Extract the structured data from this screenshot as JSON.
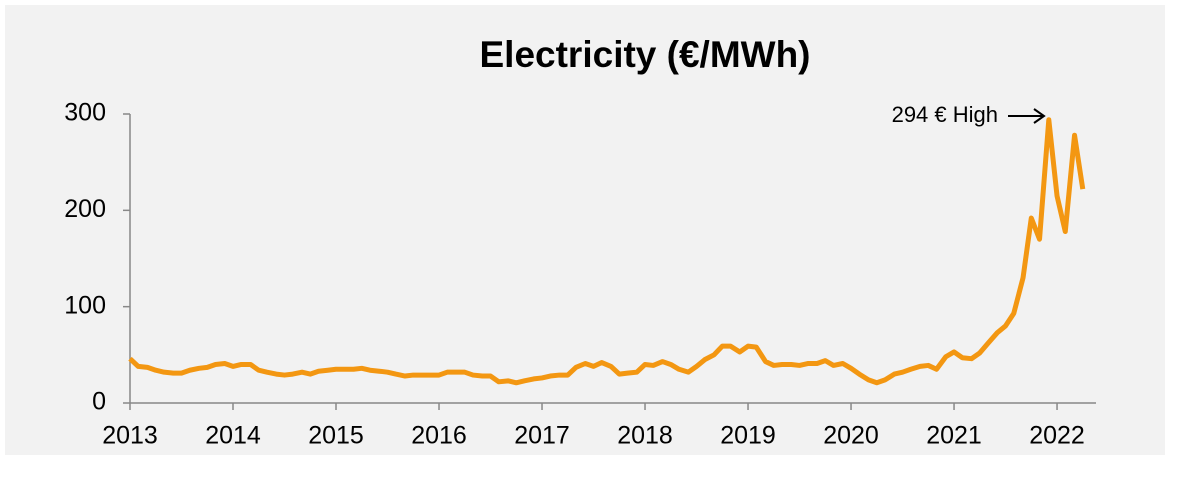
{
  "chart_data": {
    "type": "line",
    "title": "Electricity (€/MWh)",
    "annotation": "294 € High",
    "x": [
      2013,
      2013.08,
      2013.17,
      2013.25,
      2013.33,
      2013.42,
      2013.5,
      2013.58,
      2013.67,
      2013.75,
      2013.83,
      2013.92,
      2014,
      2014.08,
      2014.17,
      2014.25,
      2014.33,
      2014.42,
      2014.5,
      2014.58,
      2014.67,
      2014.75,
      2014.83,
      2014.92,
      2015,
      2015.08,
      2015.17,
      2015.25,
      2015.33,
      2015.42,
      2015.5,
      2015.58,
      2015.67,
      2015.75,
      2015.83,
      2015.92,
      2016,
      2016.08,
      2016.17,
      2016.25,
      2016.33,
      2016.42,
      2016.5,
      2016.58,
      2016.67,
      2016.75,
      2016.83,
      2016.92,
      2017,
      2017.08,
      2017.17,
      2017.25,
      2017.33,
      2017.42,
      2017.5,
      2017.58,
      2017.67,
      2017.75,
      2017.83,
      2017.92,
      2018,
      2018.08,
      2018.17,
      2018.25,
      2018.33,
      2018.42,
      2018.5,
      2018.58,
      2018.67,
      2018.75,
      2018.83,
      2018.92,
      2019,
      2019.08,
      2019.17,
      2019.25,
      2019.33,
      2019.42,
      2019.5,
      2019.58,
      2019.67,
      2019.75,
      2019.83,
      2019.92,
      2020,
      2020.08,
      2020.17,
      2020.25,
      2020.33,
      2020.42,
      2020.5,
      2020.58,
      2020.67,
      2020.75,
      2020.83,
      2020.92,
      2021,
      2021.08,
      2021.17,
      2021.25,
      2021.33,
      2021.42,
      2021.5,
      2021.58,
      2021.67,
      2021.75,
      2021.83,
      2021.92,
      2022,
      2022.08,
      2022.17,
      2022.25
    ],
    "series": [
      {
        "name": "Electricity",
        "color": "#f39712",
        "values": [
          46,
          38,
          37,
          34,
          32,
          31,
          31,
          34,
          36,
          37,
          40,
          41,
          38,
          40,
          40,
          34,
          32,
          30,
          29,
          30,
          32,
          30,
          33,
          34,
          35,
          35,
          35,
          36,
          34,
          33,
          32,
          30,
          28,
          29,
          29,
          29,
          29,
          32,
          32,
          32,
          29,
          28,
          28,
          22,
          23,
          21,
          23,
          25,
          26,
          28,
          29,
          29,
          37,
          41,
          38,
          42,
          38,
          30,
          31,
          32,
          40,
          39,
          43,
          40,
          35,
          32,
          38,
          45,
          50,
          59,
          59,
          53,
          59,
          58,
          43,
          39,
          40,
          40,
          39,
          41,
          41,
          44,
          39,
          41,
          36,
          30,
          24,
          21,
          24,
          30,
          32,
          35,
          38,
          39,
          35,
          48,
          53,
          47,
          46,
          52,
          62,
          73,
          80,
          93,
          130,
          192,
          170,
          294,
          215,
          178,
          278,
          222
        ]
      }
    ],
    "xlim": [
      2013,
      2022.32
    ],
    "xticks": [
      2013,
      2014,
      2015,
      2016,
      2017,
      2018,
      2019,
      2020,
      2021,
      2022
    ],
    "ylim": [
      0,
      300
    ],
    "yticks": [
      0,
      100,
      200,
      300
    ],
    "grid": false
  }
}
